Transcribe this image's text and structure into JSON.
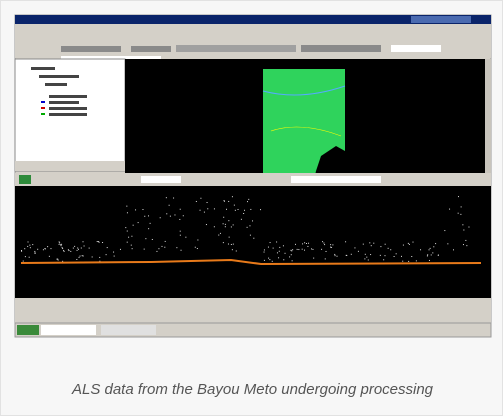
{
  "figure": {
    "caption": "ALS data from the Bayou Meto undergoing processing"
  }
}
